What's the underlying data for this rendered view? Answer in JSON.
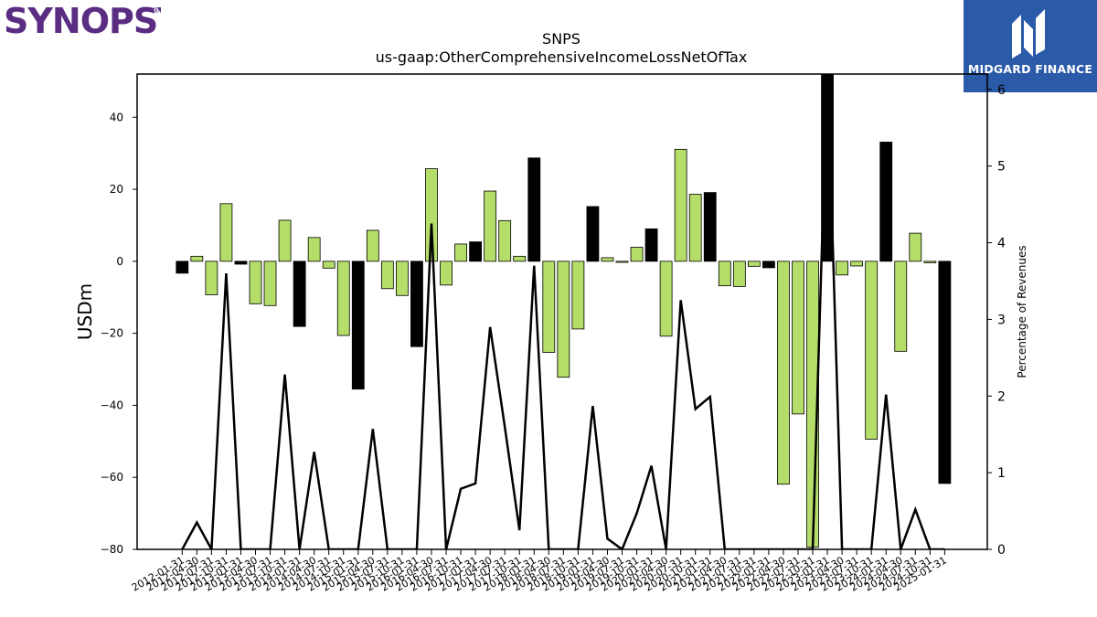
{
  "brand": {
    "left_logo_text": "SYNOPSYS",
    "right_logo_text": "MIDGARD FINANCE",
    "left_logo_icon": "synopsys-logo",
    "right_logo_icon": "midgard-finance-logo"
  },
  "colors": {
    "positive_bar": "#b5dd6a",
    "highlight_bar": "#000000",
    "line": "#000000",
    "brand_purple": "#5a2d82",
    "brand_blue": "#2a5aa8"
  },
  "chart_data": {
    "type": "bar",
    "title": "SNPS",
    "subtitle": "us-gaap:OtherComprehensiveIncomeLossNetOfTax",
    "ylabel": "USDm",
    "y2label": "Percentage of Revenues",
    "ylim": [
      -80,
      52
    ],
    "y2lim": [
      0,
      6.2
    ],
    "yticks": [
      -80,
      -60,
      -40,
      -20,
      0,
      20,
      40
    ],
    "y2ticks": [
      0,
      1,
      2,
      3,
      4,
      5,
      6
    ],
    "xtick_labels": [
      "2012-01-31",
      "2012-04-30",
      "2012-07-31",
      "2012-10-31",
      "2013-01-31",
      "2013-04-30",
      "2013-07-31",
      "2013-10-31",
      "2014-01-31",
      "2014-04-30",
      "2014-07-31",
      "2014-10-31",
      "2015-01-31",
      "2015-04-30",
      "2015-07-31",
      "2015-10-31",
      "2016-01-31",
      "2016-04-30",
      "2016-07-31",
      "2016-10-31",
      "2017-01-31",
      "2017-04-30",
      "2017-07-31",
      "2017-10-31",
      "2018-01-31",
      "2018-04-30",
      "2018-07-31",
      "2018-10-31",
      "2019-01-31",
      "2019-04-30",
      "2019-07-31",
      "2019-10-31",
      "2020-01-31",
      "2020-04-30",
      "2020-07-31",
      "2020-10-31",
      "2021-01-31",
      "2021-04-30",
      "2021-07-31",
      "2021-10-31",
      "2022-01-31",
      "2022-04-30",
      "2022-07-31",
      "2022-10-31",
      "2023-01-31",
      "2023-04-30",
      "2023-07-31",
      "2023-10-31",
      "2024-01-31",
      "2024-04-30",
      "2024-07-31",
      "2024-10-31",
      "2025-01-31"
    ],
    "bars": {
      "name": "OtherComprehensiveIncomeLossNetOfTax",
      "values": [
        -3.3,
        1.4,
        -9.3,
        16.0,
        -0.8,
        -11.8,
        -12.3,
        11.4,
        -18.1,
        6.6,
        -1.9,
        -20.6,
        -35.5,
        8.6,
        -7.6,
        -9.5,
        -23.7,
        25.7,
        -6.6,
        4.8,
        5.4,
        19.5,
        11.3,
        1.4,
        28.7,
        -25.3,
        -32.2,
        -18.8,
        15.2,
        1.0,
        -0.3,
        3.9,
        9.0,
        -20.8,
        31.1,
        18.6,
        19.1,
        -6.8,
        -7.0,
        -1.4,
        -1.8,
        -61.9,
        -42.4,
        -79.4,
        52.0,
        -3.8,
        -1.3,
        -49.4,
        33.1,
        -25.0,
        7.8,
        -0.4,
        -61.7
      ],
      "highlight": [
        1,
        0,
        0,
        0,
        1,
        0,
        0,
        0,
        1,
        0,
        0,
        0,
        1,
        0,
        0,
        0,
        1,
        0,
        0,
        0,
        1,
        0,
        0,
        0,
        1,
        0,
        0,
        0,
        1,
        0,
        0,
        0,
        1,
        0,
        0,
        0,
        1,
        0,
        0,
        0,
        1,
        0,
        0,
        0,
        1,
        0,
        0,
        0,
        1,
        0,
        0,
        0,
        1
      ]
    },
    "line": {
      "name": "Percentage of Revenues",
      "axis": "right",
      "values": [
        0,
        0.35,
        0,
        3.6,
        0,
        0,
        0,
        2.28,
        0,
        1.27,
        0,
        0,
        0,
        1.57,
        0,
        0,
        0,
        4.25,
        0,
        0.79,
        0.86,
        2.9,
        1.6,
        0.25,
        3.7,
        0,
        0,
        0,
        1.87,
        0.14,
        0,
        0.47,
        1.09,
        0,
        3.25,
        1.83,
        1.99,
        0,
        0,
        0,
        0,
        0,
        0,
        0,
        6.3,
        0,
        0,
        0,
        2.02,
        0,
        0.52,
        0,
        0
      ]
    },
    "grid": false,
    "legend": "none"
  }
}
